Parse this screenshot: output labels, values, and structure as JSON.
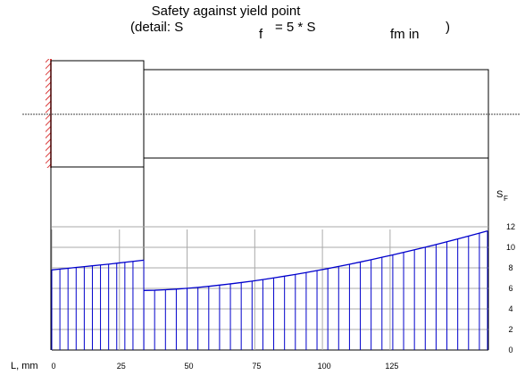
{
  "chart_data": {
    "type": "hatched-line",
    "title": "Safety against yield point",
    "subtitle_parts": [
      "(detail: S",
      "f",
      "= 5 * S",
      "fm in",
      ")"
    ],
    "x_label": "L, mm",
    "y_label": "S",
    "y_label_sub": "F",
    "xlim": [
      0,
      161
    ],
    "xticks": [
      0,
      25,
      50,
      75,
      100,
      125
    ],
    "ylim": [
      0,
      12
    ],
    "yticks": [
      0,
      2,
      4,
      6,
      8,
      10,
      12
    ],
    "grid": true,
    "series": [
      {
        "color": "#0000cc",
        "x": [
          0,
          3,
          6,
          9,
          12,
          15,
          18,
          21,
          24,
          27,
          30,
          34
        ],
        "values": [
          7.8,
          7.88,
          7.96,
          8.04,
          8.12,
          8.2,
          8.28,
          8.36,
          8.45,
          8.54,
          8.63,
          8.75
        ]
      },
      {
        "color": "#0000cc",
        "x": [
          34,
          38,
          42,
          46,
          50,
          54,
          58,
          62,
          66,
          70,
          74,
          78,
          82,
          86,
          90,
          94,
          98,
          102,
          106,
          110,
          114,
          118,
          122,
          126,
          130,
          134,
          138,
          142,
          146,
          150,
          154,
          158,
          161
        ],
        "values": [
          5.8,
          5.82,
          5.87,
          5.93,
          6.01,
          6.1,
          6.2,
          6.32,
          6.44,
          6.57,
          6.71,
          6.86,
          7.02,
          7.19,
          7.36,
          7.54,
          7.74,
          7.93,
          8.14,
          8.35,
          8.57,
          8.79,
          9.03,
          9.26,
          9.51,
          9.76,
          10.01,
          10.27,
          10.54,
          10.82,
          11.1,
          11.38,
          11.6
        ]
      }
    ]
  }
}
